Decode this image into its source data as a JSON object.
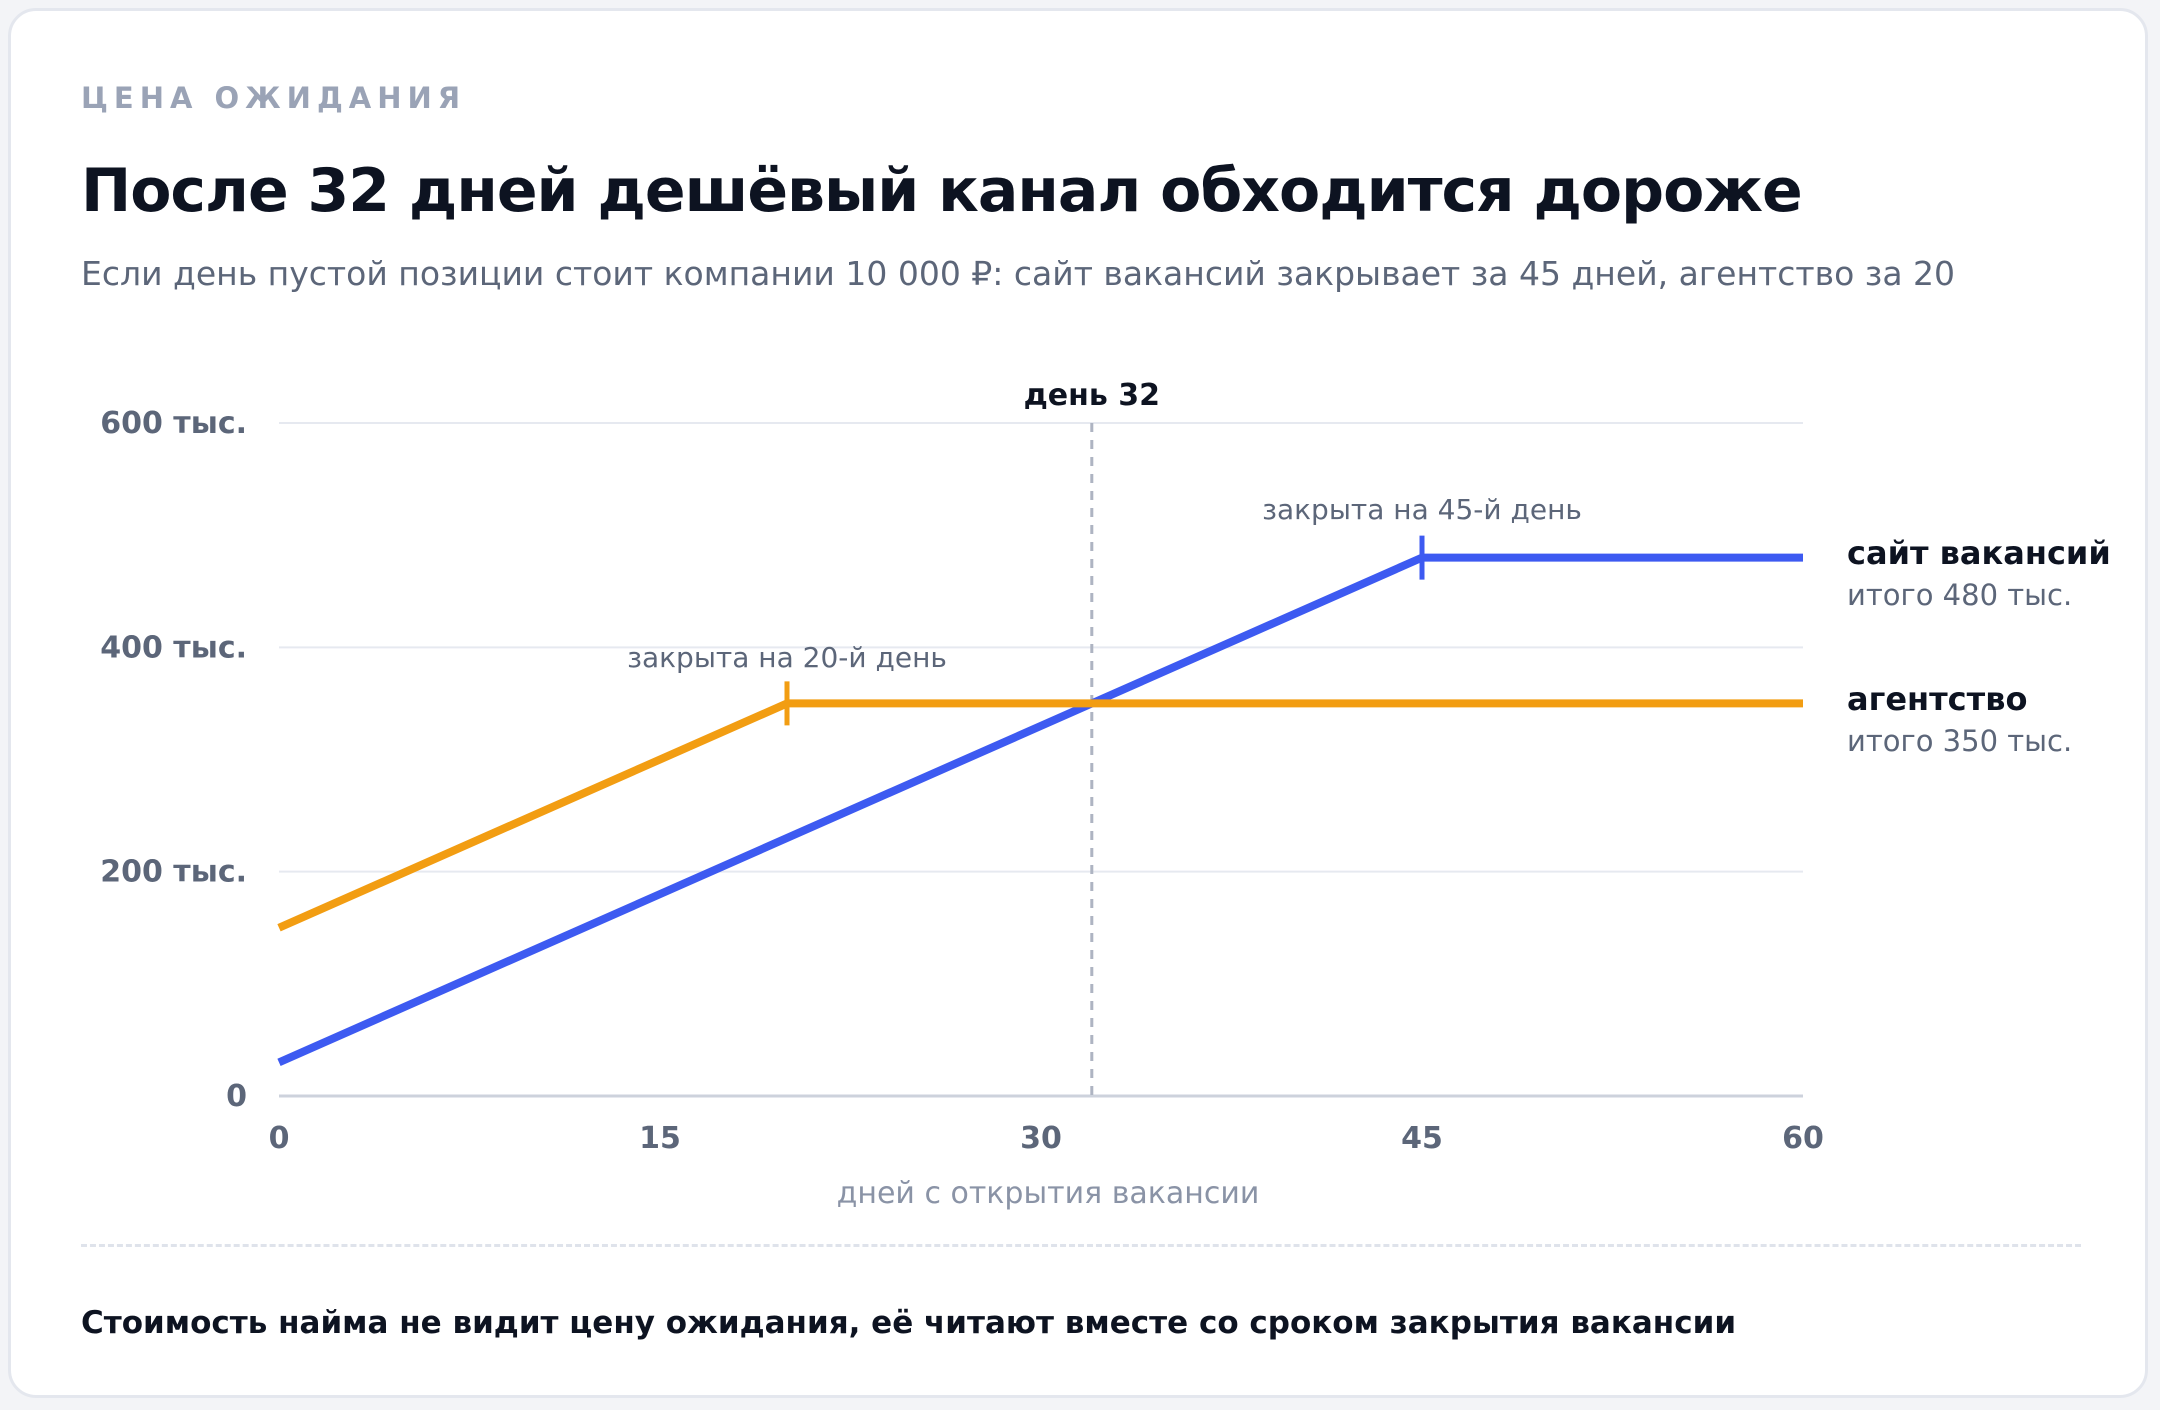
{
  "header": {
    "eyebrow": "ЦЕНА ОЖИДАНИЯ",
    "title": "После 32 дней дешёвый канал обходится дороже",
    "subtitle": "Если день пустой позиции стоит компании 10 000 ₽: сайт вакансий закрывает за 45 дней, агентство за 20"
  },
  "chart_data": {
    "type": "line",
    "xlabel": "дней с открытия вакансии",
    "xlim": [
      0,
      60
    ],
    "ylim": [
      0,
      600000
    ],
    "x_ticks": [
      {
        "value": 0,
        "label": "0"
      },
      {
        "value": 15,
        "label": "15"
      },
      {
        "value": 30,
        "label": "30"
      },
      {
        "value": 45,
        "label": "45"
      },
      {
        "value": 60,
        "label": "60"
      }
    ],
    "y_ticks": [
      {
        "value": 0,
        "label": "0"
      },
      {
        "value": 200000,
        "label": "200 тыс."
      },
      {
        "value": 400000,
        "label": "400 тыс."
      },
      {
        "value": 600000,
        "label": "600 тыс."
      }
    ],
    "grid": true,
    "series": [
      {
        "name": "сайт вакансий",
        "total_label": "итого 480 тыс.",
        "color": "#3d5af1",
        "points": [
          [
            0,
            30000
          ],
          [
            45,
            480000
          ],
          [
            60,
            480000
          ]
        ],
        "close_day": 45,
        "close_label": "закрыта на 45-й день"
      },
      {
        "name": "агентство",
        "total_label": "итого 350 тыс.",
        "color": "#f29d12",
        "points": [
          [
            0,
            150000
          ],
          [
            20,
            350000
          ],
          [
            60,
            350000
          ]
        ],
        "close_day": 20,
        "close_label": "закрыта на 20-й день"
      }
    ],
    "marker": {
      "x": 32,
      "label": "день 32"
    }
  },
  "footnote": "Стоимость найма не видит цену ожидания, её читают вместе со сроком закрытия вакансии"
}
